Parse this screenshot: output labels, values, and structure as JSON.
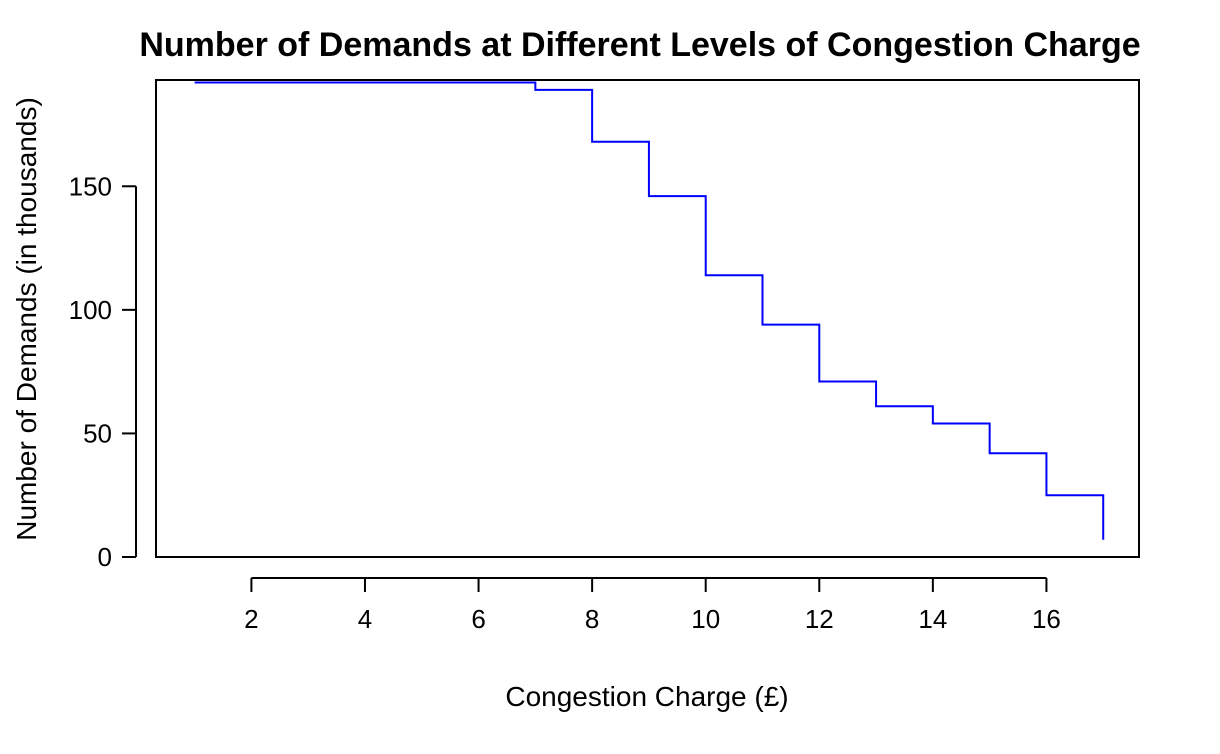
{
  "chart_data": {
    "type": "line",
    "style": "step",
    "title": "Number of Demands at Different Levels of Congestion Charge",
    "xlabel": "Congestion Charge (£)",
    "ylabel": "Number of Demands (in thousands)",
    "xlim": [
      0.32,
      17.63
    ],
    "ylim": [
      0,
      193
    ],
    "x_ticks": [
      2,
      4,
      6,
      8,
      10,
      12,
      14,
      16
    ],
    "y_ticks": [
      0,
      50,
      100,
      150
    ],
    "grid": false,
    "legend": "none",
    "series": [
      {
        "color": "#0000ff",
        "x": [
          1,
          2,
          3,
          4,
          5,
          6,
          7,
          8,
          9,
          10,
          11,
          12,
          13,
          14,
          15,
          16,
          17
        ],
        "y": [
          192,
          192,
          192,
          192,
          192,
          192,
          189,
          168,
          146,
          114,
          94,
          71,
          61,
          54,
          42,
          25,
          7
        ]
      }
    ]
  }
}
